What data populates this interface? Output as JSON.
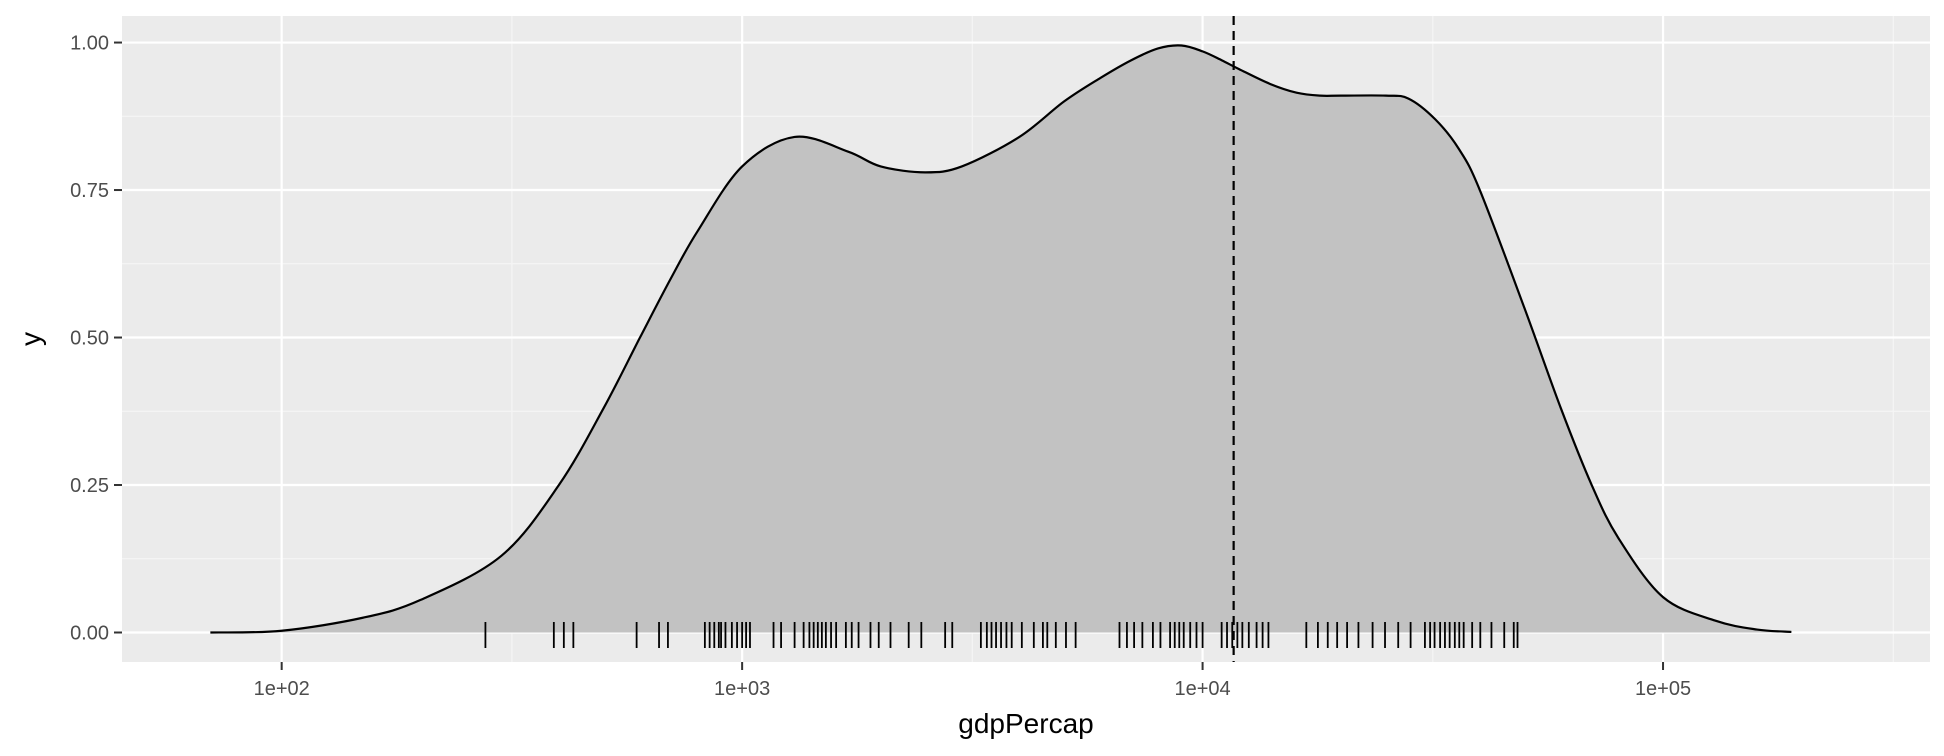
{
  "chart_data": {
    "type": "area",
    "xlabel": "gdpPercap",
    "ylabel": "y",
    "x_scale": "log10",
    "xlim": [
      45,
      380000
    ],
    "ylim": [
      -0.05,
      1.045
    ],
    "x_ticks": [
      {
        "value": 100,
        "label": "1e+02"
      },
      {
        "value": 1000,
        "label": "1e+03"
      },
      {
        "value": 10000,
        "label": "1e+04"
      },
      {
        "value": 100000,
        "label": "1e+05"
      }
    ],
    "y_ticks": [
      {
        "value": 0,
        "label": "0.00"
      },
      {
        "value": 0.25,
        "label": "0.25"
      },
      {
        "value": 0.5,
        "label": "0.50"
      },
      {
        "value": 0.75,
        "label": "0.75"
      },
      {
        "value": 1.0,
        "label": "1.00"
      }
    ],
    "grid": true,
    "legend": "none",
    "colors": {
      "panel": "#ebebeb",
      "grid_major": "#ffffff",
      "grid_minor": "#f5f5f5",
      "fill": "#c2c2c2",
      "line": "#000000"
    },
    "density": {
      "x": [
        70,
        100,
        150,
        200,
        300,
        400,
        500,
        600,
        700,
        800,
        1000,
        1300,
        1700,
        2000,
        2500,
        3000,
        4000,
        5000,
        6000,
        7000,
        8000,
        9000,
        10000,
        11000,
        12000,
        14000,
        16000,
        18000,
        20000,
        25000,
        28000,
        32000,
        36000,
        40000,
        50000,
        60000,
        70000,
        80000,
        100000,
        130000,
        160000,
        190000
      ],
      "y": [
        0.0,
        0.003,
        0.025,
        0.055,
        0.13,
        0.25,
        0.38,
        0.5,
        0.6,
        0.68,
        0.79,
        0.84,
        0.815,
        0.79,
        0.78,
        0.79,
        0.84,
        0.9,
        0.94,
        0.97,
        0.99,
        0.995,
        0.985,
        0.97,
        0.955,
        0.93,
        0.915,
        0.91,
        0.91,
        0.91,
        0.905,
        0.87,
        0.82,
        0.75,
        0.55,
        0.38,
        0.25,
        0.16,
        0.06,
        0.02,
        0.005,
        0.001
      ]
    },
    "mean_line": {
      "x": 11680,
      "style": "dashed"
    },
    "rug_x": [
      277,
      390,
      410,
      430,
      590,
      660,
      690,
      830,
      850,
      870,
      890,
      900,
      920,
      950,
      975,
      1000,
      1020,
      1040,
      1170,
      1215,
      1300,
      1360,
      1400,
      1430,
      1460,
      1490,
      1520,
      1560,
      1600,
      1680,
      1730,
      1790,
      1900,
      1980,
      2100,
      2300,
      2450,
      2760,
      2860,
      3300,
      3400,
      3480,
      3560,
      3650,
      3750,
      3850,
      4050,
      4300,
      4500,
      4600,
      4800,
      5050,
      5300,
      6600,
      6850,
      7100,
      7400,
      7800,
      8100,
      8500,
      8700,
      8900,
      9100,
      9400,
      9700,
      10000,
      11000,
      11300,
      11600,
      11900,
      12200,
      12600,
      13100,
      13500,
      13900,
      16800,
      17800,
      18700,
      19600,
      20600,
      21800,
      23400,
      24900,
      26600,
      28300,
      30400,
      31200,
      31900,
      32800,
      33600,
      34400,
      35300,
      36100,
      36900,
      38500,
      40100,
      42400,
      45200,
      47400,
      48300
    ]
  }
}
